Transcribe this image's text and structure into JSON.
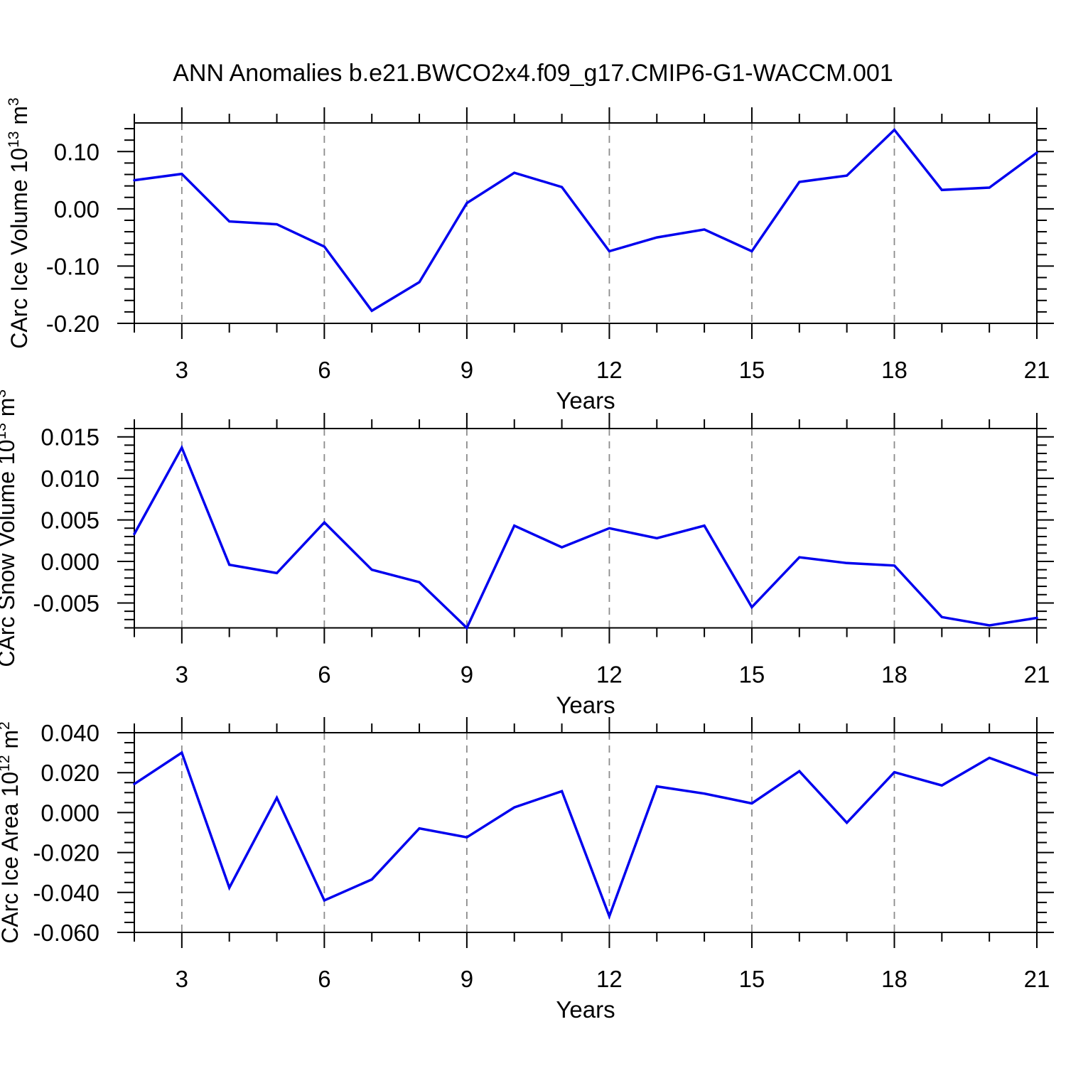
{
  "title": "ANN Anomalies b.e21.BWCO2x4.f09_g17.CMIP6-G1-WACCM.001",
  "colors": {
    "line": "#0000ee",
    "grid": "#8c8c8c",
    "axis": "#000000",
    "text": "#000000",
    "background": "#ffffff"
  },
  "x_axis": {
    "label": "Years",
    "min": 2,
    "max": 21,
    "major_ticks": [
      3,
      6,
      9,
      12,
      15,
      18,
      21
    ],
    "minor_step": 1,
    "gridlines": [
      3,
      6,
      9,
      12,
      15,
      18
    ]
  },
  "chart_data": [
    {
      "type": "line",
      "id": "carc-ice-volume",
      "ylabel": "CArc Ice Volume 10^13 m^3",
      "ylabel_parts": [
        [
          "t",
          "CArc Ice Volume 10"
        ],
        [
          "s",
          "13"
        ],
        [
          "t",
          " m"
        ],
        [
          "s",
          "3"
        ]
      ],
      "xlabel": "Years",
      "x": [
        2,
        3,
        4,
        5,
        6,
        7,
        8,
        9,
        10,
        11,
        12,
        13,
        14,
        15,
        16,
        17,
        18,
        19,
        20,
        21
      ],
      "values": [
        0.05,
        0.061,
        -0.022,
        -0.027,
        -0.066,
        -0.178,
        -0.128,
        0.01,
        0.063,
        0.038,
        -0.074,
        -0.05,
        -0.036,
        -0.074,
        0.047,
        0.058,
        0.138,
        0.033,
        0.037,
        0.098
      ],
      "ylim": [
        -0.2,
        0.15
      ],
      "yticks": {
        "values": [
          0.1,
          0.0,
          -0.1,
          -0.2
        ],
        "labels": [
          "0.10",
          "0.00",
          "-0.10",
          "-0.20"
        ],
        "minor_step": 0.02
      },
      "grid": true,
      "legend": null
    },
    {
      "type": "line",
      "id": "carc-snow-volume",
      "ylabel": "CArc Snow Volume 10^13 m^3",
      "ylabel_parts": [
        [
          "t",
          "CArc Snow Volume 10"
        ],
        [
          "s",
          "13"
        ],
        [
          "t",
          " m"
        ],
        [
          "s",
          "3"
        ]
      ],
      "xlabel": "Years",
      "x": [
        2,
        3,
        4,
        5,
        6,
        7,
        8,
        9,
        10,
        11,
        12,
        13,
        14,
        15,
        16,
        17,
        18,
        19,
        20,
        21
      ],
      "values": [
        0.0033,
        0.0137,
        -0.0004,
        -0.0014,
        0.0047,
        -0.001,
        -0.0025,
        -0.008,
        0.0043,
        0.0017,
        0.004,
        0.0028,
        0.0043,
        -0.0055,
        0.0005,
        -0.0002,
        -0.0005,
        -0.0067,
        -0.0077,
        -0.0068
      ],
      "ylim": [
        -0.008,
        0.016
      ],
      "yticks": {
        "values": [
          0.015,
          0.01,
          0.005,
          0.0,
          -0.005
        ],
        "labels": [
          "0.015",
          "0.010",
          "0.005",
          "0.000",
          "-0.005"
        ],
        "minor_step": 0.001
      },
      "grid": true,
      "legend": null
    },
    {
      "type": "line",
      "id": "carc-ice-area",
      "ylabel": "CArc Ice Area 10^12 m^2",
      "ylabel_parts": [
        [
          "t",
          "CArc Ice Area 10"
        ],
        [
          "s",
          "12"
        ],
        [
          "t",
          " m"
        ],
        [
          "s",
          "2"
        ]
      ],
      "xlabel": "Years",
      "x": [
        2,
        3,
        4,
        5,
        6,
        7,
        8,
        9,
        10,
        11,
        12,
        13,
        14,
        15,
        16,
        17,
        18,
        19,
        20,
        21
      ],
      "values": [
        0.0143,
        0.03,
        -0.0376,
        0.0074,
        -0.044,
        -0.0335,
        -0.0079,
        -0.0124,
        0.0026,
        0.0107,
        -0.0519,
        0.0131,
        0.0095,
        0.0046,
        0.0207,
        -0.0051,
        0.0202,
        0.0136,
        0.0274,
        0.0187
      ],
      "ylim": [
        -0.06,
        0.04
      ],
      "yticks": {
        "values": [
          0.04,
          0.02,
          0.0,
          -0.02,
          -0.04,
          -0.06
        ],
        "labels": [
          "0.040",
          "0.020",
          "0.000",
          "-0.020",
          "-0.040",
          "-0.060"
        ],
        "minor_step": 0.005
      },
      "grid": true,
      "legend": null
    }
  ]
}
